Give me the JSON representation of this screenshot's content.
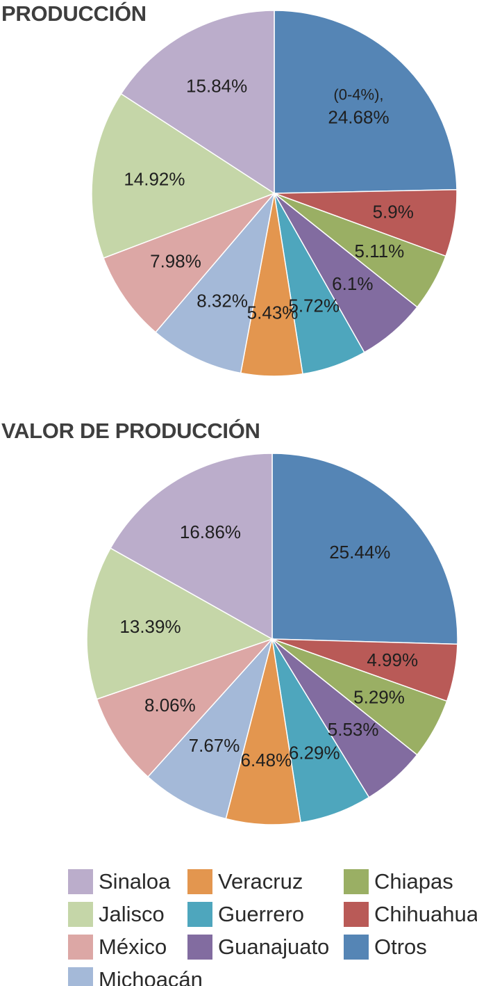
{
  "chart_data": [
    {
      "type": "pie",
      "title": "PRODUCCIÓN",
      "slices": [
        {
          "category": "Otros",
          "value": 24.68,
          "label_lines": [
            "(0-4%),",
            "24.68%"
          ],
          "color": "#5585b5"
        },
        {
          "category": "Chihuahua",
          "value": 5.9,
          "label_lines": [
            "5.9%"
          ],
          "color": "#b95a57"
        },
        {
          "category": "Chiapas",
          "value": 5.11,
          "label_lines": [
            "5.11%"
          ],
          "color": "#9aaf64"
        },
        {
          "category": "Guanajuato",
          "value": 6.1,
          "label_lines": [
            "6.1%"
          ],
          "color": "#826ca0"
        },
        {
          "category": "Guerrero",
          "value": 5.72,
          "label_lines": [
            "5.72%"
          ],
          "color": "#4ea6bd"
        },
        {
          "category": "Veracruz",
          "value": 5.43,
          "label_lines": [
            "5.43%"
          ],
          "color": "#e3964f"
        },
        {
          "category": "Michoacán",
          "value": 8.32,
          "label_lines": [
            "8.32%"
          ],
          "color": "#a4b9d8"
        },
        {
          "category": "México",
          "value": 7.98,
          "label_lines": [
            "7.98%"
          ],
          "color": "#dca7a5"
        },
        {
          "category": "Jalisco",
          "value": 14.92,
          "label_lines": [
            "14.92%"
          ],
          "color": "#c5d6a8"
        },
        {
          "category": "Sinaloa",
          "value": 15.84,
          "label_lines": [
            "15.84%"
          ],
          "color": "#bbadcb"
        }
      ]
    },
    {
      "type": "pie",
      "title": "VALOR DE PRODUCCIÓN",
      "slices": [
        {
          "category": "Otros",
          "value": 25.44,
          "label_lines": [
            "25.44%"
          ],
          "color": "#5585b5"
        },
        {
          "category": "Chihuahua",
          "value": 4.99,
          "label_lines": [
            "4.99%"
          ],
          "color": "#b95a57"
        },
        {
          "category": "Chiapas",
          "value": 5.29,
          "label_lines": [
            "5.29%"
          ],
          "color": "#9aaf64"
        },
        {
          "category": "Guanajuato",
          "value": 5.53,
          "label_lines": [
            "5.53%"
          ],
          "color": "#826ca0"
        },
        {
          "category": "Guerrero",
          "value": 6.29,
          "label_lines": [
            "6.29%"
          ],
          "color": "#4ea6bd"
        },
        {
          "category": "Veracruz",
          "value": 6.48,
          "label_lines": [
            "6.48%"
          ],
          "color": "#e3964f"
        },
        {
          "category": "Michoacán",
          "value": 7.67,
          "label_lines": [
            "7.67%"
          ],
          "color": "#a4b9d8"
        },
        {
          "category": "México",
          "value": 8.06,
          "label_lines": [
            "8.06%"
          ],
          "color": "#dca7a5"
        },
        {
          "category": "Jalisco",
          "value": 13.39,
          "label_lines": [
            "13.39%"
          ],
          "color": "#c5d6a8"
        },
        {
          "category": "Sinaloa",
          "value": 16.86,
          "label_lines": [
            "16.86%"
          ],
          "color": "#bbadcb"
        }
      ]
    }
  ],
  "legend": {
    "placement": "bottom",
    "items": [
      {
        "label": "Sinaloa",
        "color": "#bbadcb"
      },
      {
        "label": "Veracruz",
        "color": "#e3964f"
      },
      {
        "label": "Chiapas",
        "color": "#9aaf64"
      },
      {
        "label": "Jalisco",
        "color": "#c5d6a8"
      },
      {
        "label": "Guerrero",
        "color": "#4ea6bd"
      },
      {
        "label": "Chihuahua",
        "color": "#b95a57"
      },
      {
        "label": "México",
        "color": "#dca7a5"
      },
      {
        "label": "Guanajuato",
        "color": "#826ca0"
      },
      {
        "label": "Otros",
        "color": "#5585b5"
      },
      {
        "label": "Michoacán",
        "color": "#a4b9d8"
      }
    ]
  }
}
